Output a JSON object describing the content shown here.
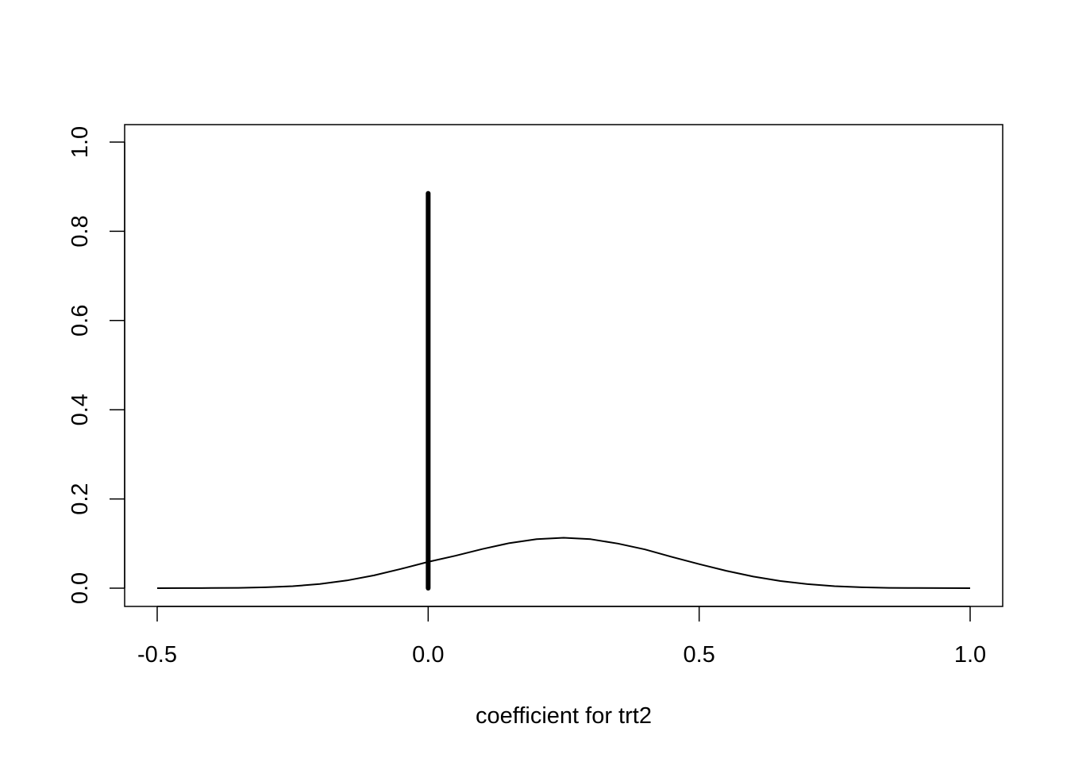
{
  "chart_data": {
    "type": "line",
    "title": "",
    "xlabel": "coefficient for trt2",
    "ylabel": "",
    "xlim": [
      -0.5,
      1.0
    ],
    "ylim": [
      0.0,
      1.0
    ],
    "x_ticks": [
      -0.5,
      0.0,
      0.5,
      1.0
    ],
    "x_tick_labels": [
      "-0.5",
      "0.0",
      "0.5",
      "1.0"
    ],
    "y_ticks": [
      0.0,
      0.2,
      0.4,
      0.6,
      0.8,
      1.0
    ],
    "y_tick_labels": [
      "0.0",
      "0.2",
      "0.4",
      "0.6",
      "0.8",
      "1.0"
    ],
    "grid": false,
    "legend": "none",
    "series": [
      {
        "kind": "curve",
        "color": "#000000",
        "x": [
          -0.5,
          -0.45,
          -0.4,
          -0.35,
          -0.3,
          -0.25,
          -0.2,
          -0.15,
          -0.1,
          -0.05,
          0.0,
          0.05,
          0.1,
          0.15,
          0.2,
          0.25,
          0.3,
          0.35,
          0.4,
          0.45,
          0.5,
          0.55,
          0.6,
          0.65,
          0.7,
          0.75,
          0.8,
          0.85,
          0.9,
          0.95,
          1.0
        ],
        "y": [
          0.0,
          0.0001,
          0.0003,
          0.0008,
          0.002,
          0.0045,
          0.0093,
          0.0172,
          0.0287,
          0.0433,
          0.0589,
          0.0726,
          0.0878,
          0.101,
          0.11,
          0.113,
          0.1098,
          0.1,
          0.0868,
          0.07,
          0.054,
          0.039,
          0.026,
          0.016,
          0.009,
          0.0045,
          0.002,
          0.0008,
          0.0003,
          0.0001,
          0.0
        ]
      },
      {
        "kind": "spike",
        "color": "#000000",
        "x": [
          0.0,
          0.0
        ],
        "y": [
          0.0,
          0.885
        ]
      }
    ]
  }
}
